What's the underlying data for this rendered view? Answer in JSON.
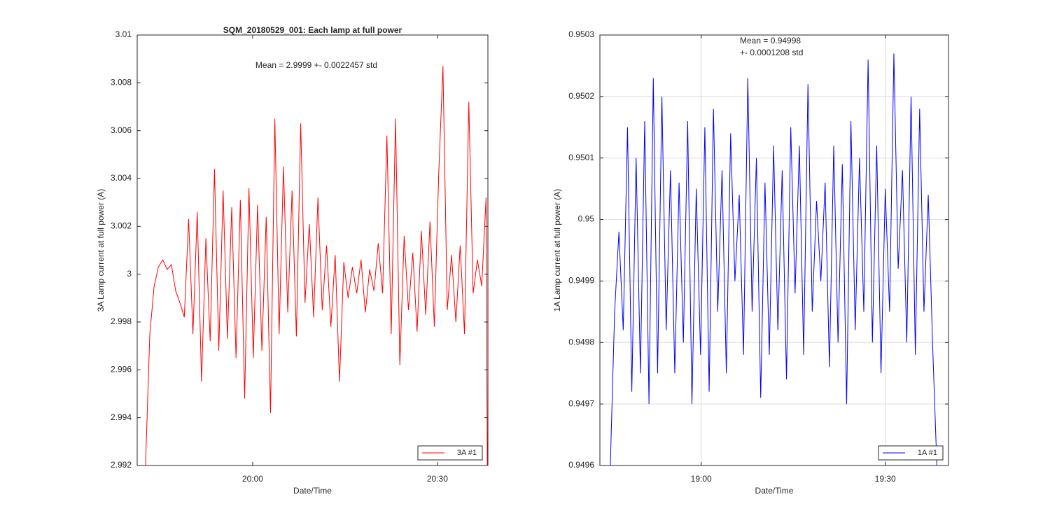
{
  "chart_data": [
    {
      "type": "line",
      "title": "SQM_20180529_001: Each lamp at full power",
      "xlabel": "Date/Time",
      "ylabel": "3A Lamp current at full power (A)",
      "annotation": [
        "Mean = 2.9999 +- 0.0022457 std"
      ],
      "x": [
        1182.6,
        1183.3,
        1184.0,
        1184.7,
        1185.4,
        1186.1,
        1186.8,
        1187.5,
        1188.2,
        1188.9,
        1189.6,
        1190.3,
        1191.0,
        1191.7,
        1192.4,
        1193.1,
        1193.8,
        1194.5,
        1195.2,
        1195.9,
        1196.6,
        1197.3,
        1198.0,
        1198.7,
        1199.4,
        1200.1,
        1200.8,
        1201.5,
        1202.2,
        1202.9,
        1203.6,
        1204.3,
        1205.0,
        1205.7,
        1206.4,
        1207.1,
        1207.8,
        1208.5,
        1209.2,
        1209.9,
        1210.6,
        1211.3,
        1212.0,
        1212.7,
        1213.4,
        1214.1,
        1214.8,
        1215.5,
        1216.2,
        1216.9,
        1217.6,
        1218.3,
        1219.0,
        1219.7,
        1220.4,
        1221.1,
        1221.8,
        1222.5,
        1223.2,
        1223.9,
        1224.6,
        1225.3,
        1226.0,
        1226.7,
        1227.4,
        1228.1,
        1228.8,
        1229.5,
        1230.2,
        1230.9,
        1231.6,
        1232.3,
        1233.0,
        1233.7,
        1234.4,
        1235.1,
        1235.8,
        1236.5,
        1237.2,
        1237.9,
        1238.1
      ],
      "series": [
        {
          "name": "3A #1",
          "color": "#ff0000",
          "values": [
            2.992,
            2.9975,
            2.9995,
            3.0003,
            3.0006,
            3.0002,
            3.0004,
            2.9993,
            2.9988,
            2.9982,
            3.0023,
            2.9975,
            3.0026,
            2.9955,
            3.0015,
            2.9972,
            3.0044,
            2.9968,
            3.0035,
            2.9973,
            3.0028,
            2.9965,
            3.0031,
            2.9948,
            3.0036,
            2.9965,
            3.0029,
            2.9968,
            3.0024,
            2.9942,
            3.0065,
            2.9975,
            3.0045,
            2.9984,
            3.0035,
            2.9974,
            3.0063,
            2.9988,
            3.0021,
            2.9982,
            3.0032,
            2.9985,
            3.0012,
            2.9978,
            3.0008,
            2.9955,
            3.0005,
            2.999,
            3.0003,
            2.9992,
            3.0006,
            2.9984,
            3.0002,
            2.9993,
            3.0013,
            2.9992,
            3.0058,
            2.9975,
            3.0065,
            2.9962,
            3.0016,
            2.9985,
            3.0009,
            2.9976,
            3.0018,
            2.9983,
            3.0022,
            2.9978,
            3.0041,
            3.0087,
            2.9985,
            3.0008,
            2.998,
            3.0012,
            2.9975,
            3.0072,
            2.9992,
            3.0006,
            2.9995,
            3.0032,
            2.992
          ]
        }
      ],
      "xlim": [
        1181.25,
        1238.2
      ],
      "xticks": [
        {
          "value": 1200,
          "label": "20:00"
        },
        {
          "value": 1230,
          "label": "20:30"
        }
      ],
      "ylim": [
        2.992,
        3.01
      ],
      "yticks": [
        2.992,
        2.994,
        2.996,
        2.998,
        3,
        3.002,
        3.004,
        3.006,
        3.008,
        3.01
      ],
      "grid": false,
      "legend": "lower right"
    },
    {
      "type": "line",
      "xlabel": "Date/Time",
      "ylabel": "1A Lamp current at full power (A)",
      "annotation": [
        "Mean = 0.94998",
        "+- 0.0001208 std"
      ],
      "x": [
        1125.2,
        1125.9,
        1126.6,
        1127.3,
        1128.0,
        1128.7,
        1129.4,
        1130.1,
        1130.8,
        1131.5,
        1132.2,
        1132.9,
        1133.6,
        1134.3,
        1135.0,
        1135.7,
        1136.4,
        1137.1,
        1137.8,
        1138.5,
        1139.2,
        1139.9,
        1140.6,
        1141.3,
        1142.0,
        1142.7,
        1143.4,
        1144.1,
        1144.8,
        1145.5,
        1146.2,
        1146.9,
        1147.6,
        1148.3,
        1149.0,
        1149.7,
        1150.4,
        1151.1,
        1151.8,
        1152.5,
        1153.2,
        1153.9,
        1154.6,
        1155.3,
        1156.0,
        1156.7,
        1157.4,
        1158.1,
        1158.8,
        1159.5,
        1160.2,
        1160.9,
        1161.6,
        1162.3,
        1163.0,
        1163.7,
        1164.4,
        1165.1,
        1165.8,
        1166.5,
        1167.2,
        1167.9,
        1168.6,
        1169.3,
        1170.0,
        1170.7,
        1171.4,
        1172.1,
        1172.8,
        1173.5,
        1174.2,
        1174.9,
        1175.6,
        1176.3,
        1177.0,
        1177.7,
        1178.4
      ],
      "series": [
        {
          "name": "1A #1",
          "color": "#0000ff",
          "values": [
            0.9496,
            0.94985,
            0.94998,
            0.94982,
            0.95015,
            0.94972,
            0.9501,
            0.94975,
            0.95016,
            0.9497,
            0.95023,
            0.94975,
            0.9502,
            0.94982,
            0.95008,
            0.94975,
            0.95006,
            0.9498,
            0.95016,
            0.9497,
            0.95005,
            0.94978,
            0.95015,
            0.94972,
            0.95018,
            0.94985,
            0.95008,
            0.94975,
            0.95014,
            0.9499,
            0.95004,
            0.94978,
            0.95023,
            0.94985,
            0.9501,
            0.94971,
            0.95006,
            0.94978,
            0.95012,
            0.94982,
            0.95008,
            0.94974,
            0.95015,
            0.94988,
            0.95012,
            0.94978,
            0.95022,
            0.94985,
            0.95003,
            0.9499,
            0.95006,
            0.94976,
            0.95012,
            0.9498,
            0.95009,
            0.9497,
            0.95016,
            0.94982,
            0.9501,
            0.94985,
            0.95026,
            0.9498,
            0.95012,
            0.94975,
            0.95005,
            0.94985,
            0.95027,
            0.94992,
            0.95008,
            0.9498,
            0.9502,
            0.94978,
            0.95018,
            0.94985,
            0.95004,
            0.9498,
            0.9496
          ]
        }
      ],
      "xlim": [
        1123.5,
        1180.3
      ],
      "xticks": [
        {
          "value": 1140,
          "label": "19:00"
        },
        {
          "value": 1170,
          "label": "19:30"
        }
      ],
      "ylim": [
        0.9496,
        0.9503
      ],
      "yticks": [
        0.9496,
        0.9497,
        0.9498,
        0.9499,
        0.95,
        0.9501,
        0.9502,
        0.9503
      ],
      "grid": true,
      "legend": "lower right"
    }
  ]
}
